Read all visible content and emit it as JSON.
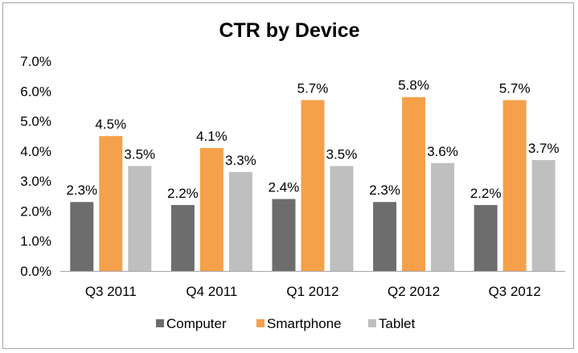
{
  "chart_data": {
    "type": "bar",
    "title": "CTR by Device",
    "categories": [
      "Q3 2011",
      "Q4 2011",
      "Q1 2012",
      "Q2 2012",
      "Q3 2012"
    ],
    "series": [
      {
        "name": "Computer",
        "color": "#6d6d6d",
        "values": [
          2.3,
          2.2,
          2.4,
          2.3,
          2.2
        ],
        "labels": [
          "2.3%",
          "2.2%",
          "2.4%",
          "2.3%",
          "2.2%"
        ]
      },
      {
        "name": "Smartphone",
        "color": "#f5a04a",
        "values": [
          4.5,
          4.1,
          5.7,
          5.8,
          5.7
        ],
        "labels": [
          "4.5%",
          "4.1%",
          "5.7%",
          "5.8%",
          "5.7%"
        ]
      },
      {
        "name": "Tablet",
        "color": "#bfbfbf",
        "values": [
          3.5,
          3.3,
          3.5,
          3.6,
          3.7
        ],
        "labels": [
          "3.5%",
          "3.3%",
          "3.5%",
          "3.6%",
          "3.7%"
        ]
      }
    ],
    "yticks": [
      "0.0%",
      "1.0%",
      "2.0%",
      "3.0%",
      "4.0%",
      "5.0%",
      "6.0%",
      "7.0%"
    ],
    "ylim": [
      0,
      7
    ],
    "grid": false,
    "legend_position": "bottom"
  }
}
